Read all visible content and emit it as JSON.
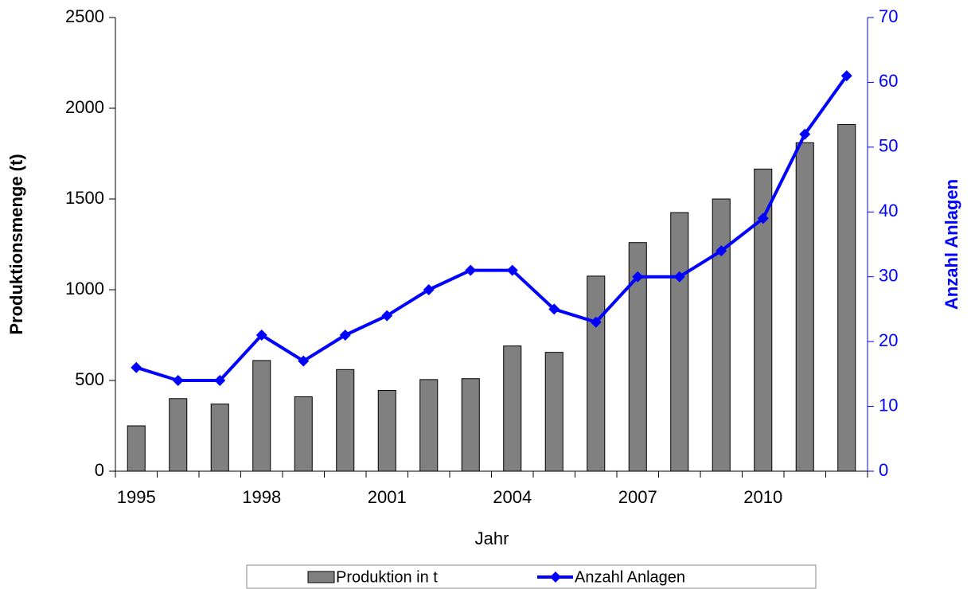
{
  "chart_data": {
    "type": "bar-line",
    "categories": [
      "1995",
      null,
      null,
      "1998",
      null,
      null,
      "2001",
      null,
      null,
      "2004",
      null,
      null,
      "2007",
      null,
      null,
      "2010",
      null,
      null
    ],
    "x_label": "Jahr",
    "y_label": "Produktionsmenge (t)",
    "y2_label": "Anzahl Anlagen",
    "ylim": [
      0,
      2500
    ],
    "yticks": [
      0,
      500,
      1000,
      1500,
      2000,
      2500
    ],
    "y2lim": [
      0,
      70
    ],
    "y2ticks": [
      0,
      10,
      20,
      30,
      40,
      50,
      60,
      70
    ],
    "legend": "bottom",
    "series": [
      {
        "name": "Produktion in t",
        "type": "bar",
        "color": "#808080",
        "values": [
          250,
          400,
          370,
          610,
          410,
          560,
          445,
          505,
          510,
          690,
          655,
          1075,
          1260,
          1425,
          1500,
          1665,
          1810,
          1910
        ]
      },
      {
        "name": "Anzahl Anlagen",
        "type": "line",
        "axis": "y2",
        "color": "#0000ff",
        "values": [
          16,
          14,
          14,
          21,
          17,
          21,
          24,
          28,
          31,
          31,
          25,
          23,
          30,
          30,
          34,
          39,
          52,
          61
        ]
      }
    ]
  }
}
